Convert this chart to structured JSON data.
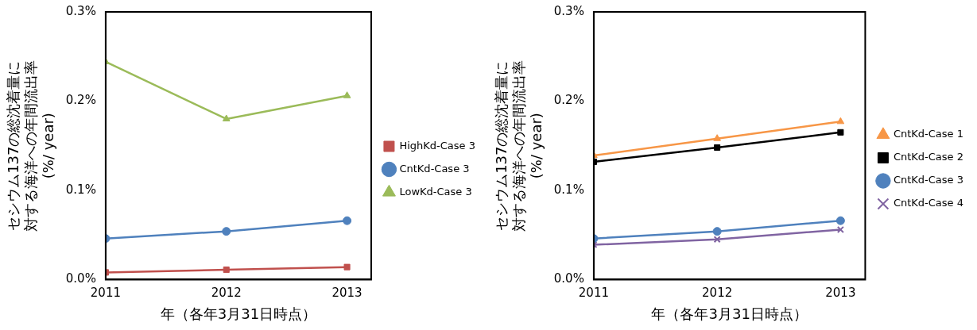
{
  "chart_data": [
    {
      "type": "line",
      "xlabel": "年（各年3月31日時点）",
      "ylabel": "セシウム137の総沈着量に対する海洋への年間流出率(%/ year)",
      "x": [
        2011,
        2012,
        2013
      ],
      "xlim": [
        2011,
        2013.2
      ],
      "xticks": [
        2011,
        2012,
        2013
      ],
      "ylim": [
        0,
        0.3
      ],
      "yticks": [
        {
          "value": 0,
          "label": "0.0%"
        },
        {
          "value": 0.1,
          "label": "0.1%"
        },
        {
          "value": 0.2,
          "label": "0.2%"
        },
        {
          "value": 0.3,
          "label": "0.3%"
        }
      ],
      "grid": false,
      "legend": "right",
      "series": [
        {
          "name": "HighKd-Case 3",
          "color": "#c0504d",
          "marker": "square",
          "values": [
            0.008,
            0.011,
            0.014
          ]
        },
        {
          "name": "CntKd-Case 3",
          "color": "#4f81bd",
          "marker": "circle",
          "values": [
            0.046,
            0.054,
            0.066
          ]
        },
        {
          "name": "LowKd-Case 3",
          "color": "#9bbb59",
          "marker": "triangle",
          "values": [
            0.244,
            0.18,
            0.206
          ]
        }
      ]
    },
    {
      "type": "line",
      "xlabel": "年（各年3月31日時点）",
      "ylabel": "セシウム137の総沈着量に対する海洋への年間流出率(%/ year)",
      "x": [
        2011,
        2012,
        2013
      ],
      "xlim": [
        2011,
        2013.2
      ],
      "xticks": [
        2011,
        2012,
        2013
      ],
      "ylim": [
        0,
        0.3
      ],
      "yticks": [
        {
          "value": 0,
          "label": "0.0%"
        },
        {
          "value": 0.1,
          "label": "0.1%"
        },
        {
          "value": 0.2,
          "label": "0.2%"
        },
        {
          "value": 0.3,
          "label": "0.3%"
        }
      ],
      "grid": false,
      "legend": "right",
      "series": [
        {
          "name": "CntKd-Case 1",
          "color": "#f79646",
          "marker": "triangle",
          "values": [
            0.139,
            0.158,
            0.177
          ]
        },
        {
          "name": "CntKd-Case 2",
          "color": "#000000",
          "marker": "square",
          "values": [
            0.132,
            0.148,
            0.165
          ]
        },
        {
          "name": "CntKd-Case 3",
          "color": "#4f81bd",
          "marker": "circle",
          "values": [
            0.046,
            0.054,
            0.066
          ]
        },
        {
          "name": "CntKd-Case 4",
          "color": "#8064a2",
          "marker": "cross",
          "values": [
            0.039,
            0.045,
            0.056
          ]
        }
      ]
    }
  ]
}
